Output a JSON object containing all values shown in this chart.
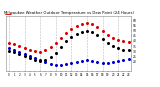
{
  "title": "Milwaukee Weather Outdoor Temperature vs Dew Point (24 Hours)",
  "bg_color": "#ffffff",
  "grid_color": "#bbbbbb",
  "hours": [
    0,
    1,
    2,
    3,
    4,
    5,
    6,
    7,
    8,
    9,
    10,
    11,
    12,
    13,
    14,
    15,
    16,
    17,
    18,
    19,
    20,
    21,
    22,
    23
  ],
  "temp": [
    38,
    37,
    35,
    33,
    31,
    30,
    29,
    31,
    34,
    38,
    43,
    48,
    52,
    55,
    57,
    58,
    57,
    54,
    50,
    46,
    43,
    41,
    40,
    39
  ],
  "dewpoint": [
    33,
    31,
    29,
    27,
    25,
    23,
    21,
    19,
    17,
    16,
    16,
    17,
    18,
    19,
    20,
    21,
    20,
    19,
    18,
    18,
    19,
    20,
    21,
    22
  ],
  "apparent": [
    30,
    29,
    27,
    25,
    23,
    21,
    20,
    21,
    24,
    28,
    34,
    40,
    44,
    47,
    49,
    50,
    49,
    46,
    42,
    38,
    35,
    33,
    31,
    31
  ],
  "temp_color": "#dd0000",
  "dew_color": "#0000cc",
  "apparent_color": "#000000",
  "ylim": [
    10,
    65
  ],
  "xlim": [
    -0.5,
    23.5
  ],
  "dashed_hours": [
    0,
    3,
    6,
    9,
    12,
    15,
    18,
    21
  ],
  "marker_size": 1.2,
  "legend_line_color": "#dd0000",
  "ytick_labels": [
    "20",
    "25",
    "30",
    "35",
    "40",
    "45",
    "50",
    "55",
    "60"
  ],
  "ytick_vals": [
    20,
    25,
    30,
    35,
    40,
    45,
    50,
    55,
    60
  ],
  "xtick_vals": [
    0,
    1,
    2,
    3,
    4,
    5,
    6,
    7,
    8,
    9,
    10,
    11,
    12,
    13,
    14,
    15,
    16,
    17,
    18,
    19,
    20,
    21,
    22,
    23
  ],
  "xtick_labels": [
    "0",
    "1",
    "2",
    "3",
    "4",
    "5",
    "6",
    "7",
    "8",
    "9",
    "10",
    "11",
    "12",
    "13",
    "14",
    "15",
    "16",
    "17",
    "18",
    "19",
    "20",
    "21",
    "22",
    "23"
  ]
}
